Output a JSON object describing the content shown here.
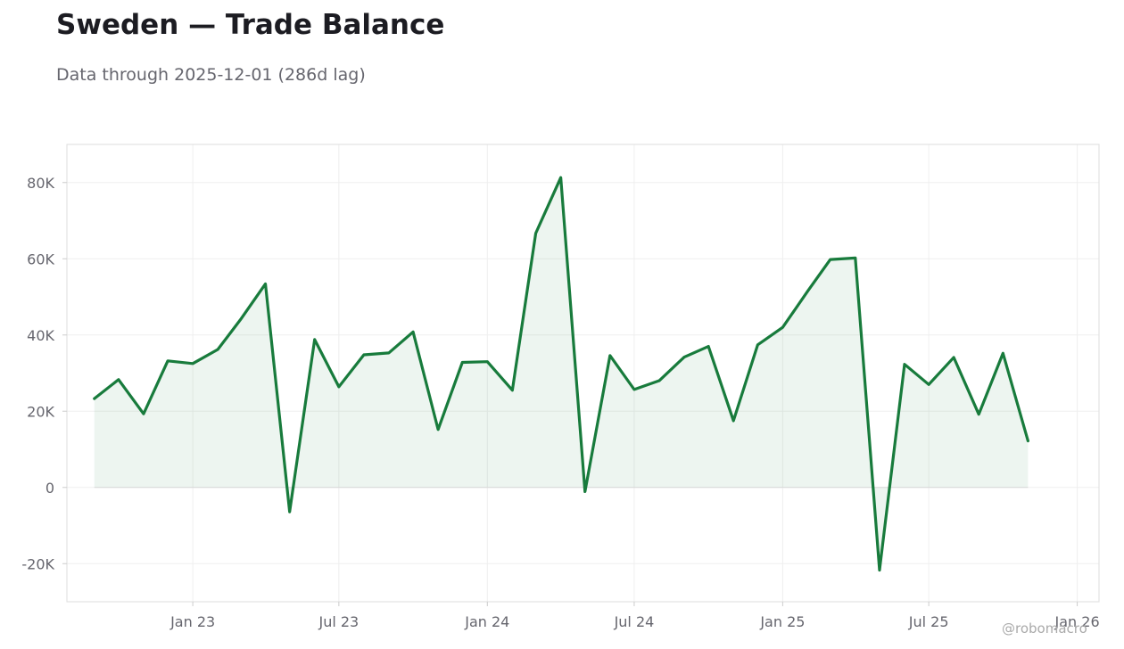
{
  "header": {
    "title": "Sweden — Trade Balance",
    "subtitle": "Data through 2025-12-01 (286d lag)"
  },
  "watermark": "@robomacro",
  "chart_data": {
    "type": "area",
    "title": "Sweden — Trade Balance",
    "subtitle": "Data through 2025-12-01 (286d lag)",
    "xlabel": "",
    "ylabel": "",
    "grid": true,
    "legend": "none",
    "x": [
      "2022-09-01",
      "2022-10-01",
      "2022-11-01",
      "2022-12-01",
      "2023-01-01",
      "2023-02-01",
      "2023-03-01",
      "2023-04-01",
      "2023-05-01",
      "2023-06-01",
      "2023-07-01",
      "2023-08-01",
      "2023-09-01",
      "2023-10-01",
      "2023-11-01",
      "2023-12-01",
      "2024-01-01",
      "2024-02-01",
      "2024-03-01",
      "2024-04-01",
      "2024-05-01",
      "2024-06-01",
      "2024-07-01",
      "2024-08-01",
      "2024-09-01",
      "2024-10-01",
      "2024-11-01",
      "2024-12-01",
      "2025-01-01",
      "2025-02-01",
      "2025-03-01",
      "2025-04-01",
      "2025-05-01",
      "2025-06-01",
      "2025-07-01",
      "2025-08-01",
      "2025-09-01",
      "2025-10-01",
      "2025-11-01"
    ],
    "series": [
      {
        "values": [
          23300,
          28300,
          19300,
          33200,
          32500,
          36200,
          44000,
          53400,
          -6400,
          38800,
          26400,
          34800,
          35300,
          40800,
          15200,
          32800,
          33000,
          25500,
          66700,
          81300,
          -1100,
          34600,
          25700,
          28000,
          34200,
          37000,
          17500,
          37400,
          42000,
          51500,
          59800,
          60200,
          -21700,
          32300,
          27000,
          34100,
          19200,
          35200,
          12200
        ]
      }
    ],
    "ylim": [
      -30000,
      90000
    ],
    "xlim": [
      "2022-07-29",
      "2026-01-28"
    ],
    "yticks": [
      -20000,
      0,
      20000,
      40000,
      60000,
      80000
    ],
    "ytick_labels": [
      "-20K",
      "0",
      "20K",
      "40K",
      "60K",
      "80K"
    ],
    "xticks": [
      "2023-01-01",
      "2023-07-01",
      "2024-01-01",
      "2024-07-01",
      "2025-01-01",
      "2025-07-01",
      "2026-01-01"
    ],
    "xtick_labels": [
      "Jan 23",
      "Jul 23",
      "Jan 24",
      "Jul 24",
      "Jan 25",
      "Jul 25",
      "Jan 26"
    ],
    "colors": {
      "line": "#187b3c",
      "fill": "#187b3c",
      "grid": "#efefef",
      "frame": "#dddddd",
      "tick_text": "#66666e"
    }
  }
}
